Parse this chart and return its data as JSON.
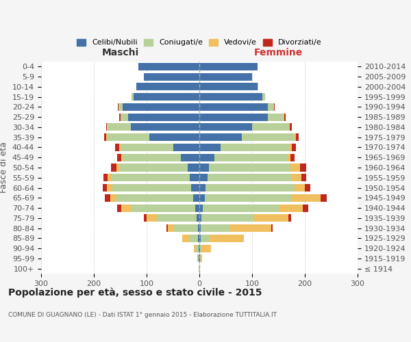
{
  "age_groups": [
    "100+",
    "95-99",
    "90-94",
    "85-89",
    "80-84",
    "75-79",
    "70-74",
    "65-69",
    "60-64",
    "55-59",
    "50-54",
    "45-49",
    "40-44",
    "35-39",
    "30-34",
    "25-29",
    "20-24",
    "15-19",
    "10-14",
    "5-9",
    "0-4"
  ],
  "birth_years": [
    "≤ 1914",
    "1915-1919",
    "1920-1924",
    "1925-1929",
    "1930-1934",
    "1935-1939",
    "1940-1944",
    "1945-1949",
    "1950-1954",
    "1955-1959",
    "1960-1964",
    "1965-1969",
    "1970-1974",
    "1975-1979",
    "1980-1984",
    "1985-1989",
    "1990-1994",
    "1995-1999",
    "2000-2004",
    "2005-2009",
    "2010-2014"
  ],
  "male": {
    "celibi": [
      0,
      1,
      1,
      2,
      3,
      5,
      8,
      12,
      15,
      18,
      22,
      35,
      50,
      95,
      130,
      135,
      145,
      125,
      120,
      105,
      115
    ],
    "coniugati": [
      1,
      2,
      5,
      18,
      45,
      75,
      120,
      145,
      150,
      148,
      130,
      110,
      100,
      80,
      45,
      15,
      8,
      3,
      0,
      0,
      0
    ],
    "vedovi": [
      0,
      1,
      5,
      12,
      12,
      20,
      20,
      12,
      10,
      8,
      5,
      3,
      2,
      1,
      0,
      0,
      0,
      0,
      0,
      0,
      0
    ],
    "divorziati": [
      0,
      0,
      0,
      0,
      2,
      5,
      8,
      10,
      8,
      8,
      10,
      8,
      8,
      5,
      2,
      2,
      1,
      0,
      0,
      0,
      0
    ]
  },
  "female": {
    "nubili": [
      0,
      1,
      1,
      2,
      2,
      4,
      6,
      10,
      12,
      15,
      18,
      28,
      40,
      80,
      100,
      130,
      130,
      120,
      110,
      100,
      110
    ],
    "coniugate": [
      0,
      1,
      3,
      18,
      55,
      100,
      145,
      165,
      168,
      160,
      155,
      140,
      130,
      100,
      70,
      30,
      12,
      5,
      2,
      0,
      0
    ],
    "vedove": [
      1,
      3,
      18,
      65,
      80,
      65,
      45,
      55,
      20,
      18,
      18,
      5,
      5,
      3,
      2,
      1,
      0,
      0,
      0,
      0,
      0
    ],
    "divorziate": [
      0,
      0,
      0,
      0,
      2,
      5,
      10,
      12,
      10,
      10,
      12,
      8,
      8,
      5,
      3,
      2,
      1,
      0,
      0,
      0,
      0
    ]
  },
  "colors": {
    "celibi_nubili": "#4472a8",
    "coniugati": "#b8d09a",
    "vedovi": "#f0c060",
    "divorziati": "#c0281e"
  },
  "xlim": 300,
  "title": "Popolazione per età, sesso e stato civile - 2015",
  "subtitle": "COMUNE DI GUAGNANO (LE) - Dati ISTAT 1° gennaio 2015 - Elaborazione TUTTITALIA.IT",
  "ylabel_left": "Fasce di età",
  "xlabel_maschi": "Maschi",
  "xlabel_femmine": "Femmine",
  "legend_labels": [
    "Celibi/Nubili",
    "Coniugati/e",
    "Vedovi/e",
    "Divorziati/e"
  ],
  "bg_color": "#f5f5f5",
  "plot_bg": "#ffffff"
}
